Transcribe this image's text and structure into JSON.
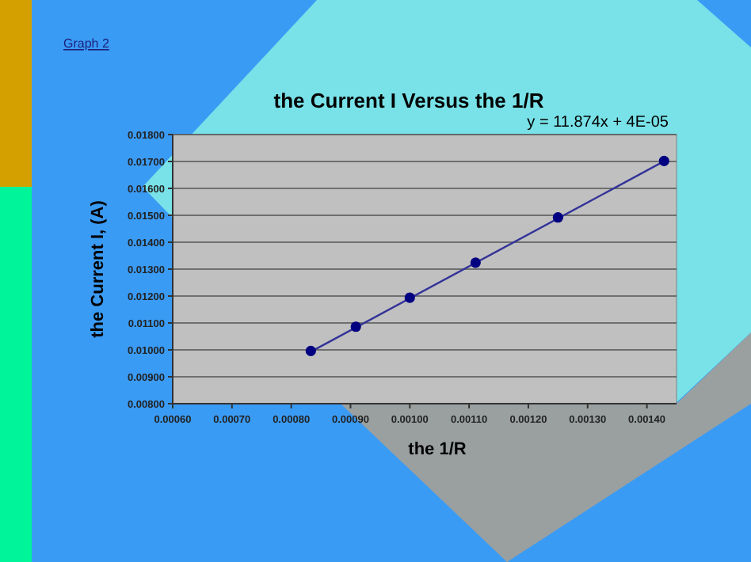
{
  "chart_data": {
    "type": "scatter",
    "title": "the Current I Versus the 1/R",
    "xlabel": "the 1/R",
    "ylabel": "the Current I, (A)",
    "annotations": [
      "Graph 2",
      "y = 11.874x + 4E-05"
    ],
    "series": [
      {
        "type": "scatter",
        "color": "#000080",
        "x": [
          0.000833,
          0.000909,
          0.001,
          0.001111,
          0.00125,
          0.001429
        ],
        "values": [
          0.00996,
          0.01086,
          0.01194,
          0.01324,
          0.01492,
          0.01702
        ]
      },
      {
        "type": "line",
        "marker": "none",
        "color": "#333399",
        "x": [
          0.000833,
          0.001429
        ],
        "values": [
          0.00993,
          0.01701
        ]
      }
    ],
    "xlim": [
      0.0006,
      0.00145
    ],
    "xticks": [
      {
        "value": 0.0006,
        "label": "0.00060"
      },
      {
        "value": 0.0007,
        "label": "0.00070"
      },
      {
        "value": 0.0008,
        "label": "0.00080"
      },
      {
        "value": 0.0009,
        "label": "0.00090"
      },
      {
        "value": 0.001,
        "label": "0.00100"
      },
      {
        "value": 0.0011,
        "label": "0.00110"
      },
      {
        "value": 0.0012,
        "label": "0.00120"
      },
      {
        "value": 0.0013,
        "label": "0.00130"
      },
      {
        "value": 0.0014,
        "label": "0.00140"
      }
    ],
    "ylim": [
      0.008,
      0.018
    ],
    "yticks": [
      {
        "value": 0.008,
        "label": "0.00800"
      },
      {
        "value": 0.009,
        "label": "0.00900"
      },
      {
        "value": 0.01,
        "label": "0.01000"
      },
      {
        "value": 0.011,
        "label": "0.01100"
      },
      {
        "value": 0.012,
        "label": "0.01200"
      },
      {
        "value": 0.013,
        "label": "0.01300"
      },
      {
        "value": 0.014,
        "label": "0.01400"
      },
      {
        "value": 0.015,
        "label": "0.01500"
      },
      {
        "value": 0.016,
        "label": "0.01600"
      },
      {
        "value": 0.017,
        "label": "0.01700"
      },
      {
        "value": 0.018,
        "label": "0.01800"
      }
    ],
    "grid": "y",
    "marker": "circle",
    "line_style": "solid"
  }
}
